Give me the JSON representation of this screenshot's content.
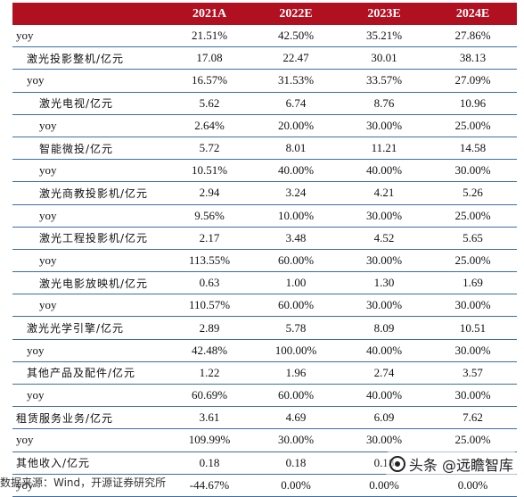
{
  "header": [
    "",
    "2021A",
    "2022E",
    "2023E",
    "2024E"
  ],
  "rows": [
    {
      "label": "yoy",
      "level": 0,
      "zh": false,
      "v": [
        "21.51%",
        "42.50%",
        "35.21%",
        "27.86%"
      ]
    },
    {
      "label": "激光投影整机/亿元",
      "level": 1,
      "zh": true,
      "v": [
        "17.08",
        "22.47",
        "30.01",
        "38.13"
      ]
    },
    {
      "label": "yoy",
      "level": 1,
      "zh": false,
      "v": [
        "16.57%",
        "31.53%",
        "33.57%",
        "27.09%"
      ]
    },
    {
      "label": "激光电视/亿元",
      "level": 2,
      "zh": true,
      "v": [
        "5.62",
        "6.74",
        "8.76",
        "10.96"
      ]
    },
    {
      "label": "yoy",
      "level": 2,
      "zh": false,
      "v": [
        "2.64%",
        "20.00%",
        "30.00%",
        "25.00%"
      ]
    },
    {
      "label": "智能微投/亿元",
      "level": 2,
      "zh": true,
      "v": [
        "5.72",
        "8.01",
        "11.21",
        "14.58"
      ]
    },
    {
      "label": "yoy",
      "level": 2,
      "zh": false,
      "v": [
        "10.51%",
        "40.00%",
        "40.00%",
        "30.00%"
      ]
    },
    {
      "label": "激光商教投影机/亿元",
      "level": 2,
      "zh": true,
      "v": [
        "2.94",
        "3.24",
        "4.21",
        "5.26"
      ]
    },
    {
      "label": "yoy",
      "level": 2,
      "zh": false,
      "v": [
        "9.56%",
        "10.00%",
        "30.00%",
        "25.00%"
      ]
    },
    {
      "label": "激光工程投影机/亿元",
      "level": 2,
      "zh": true,
      "v": [
        "2.17",
        "3.48",
        "4.52",
        "5.65"
      ]
    },
    {
      "label": "yoy",
      "level": 2,
      "zh": false,
      "v": [
        "113.55%",
        "60.00%",
        "30.00%",
        "25.00%"
      ]
    },
    {
      "label": "激光电影放映机/亿元",
      "level": 2,
      "zh": true,
      "v": [
        "0.63",
        "1.00",
        "1.30",
        "1.69"
      ]
    },
    {
      "label": "yoy",
      "level": 2,
      "zh": false,
      "v": [
        "110.57%",
        "60.00%",
        "30.00%",
        "30.00%"
      ]
    },
    {
      "label": "激光光学引擎/亿元",
      "level": 1,
      "zh": true,
      "v": [
        "2.89",
        "5.78",
        "8.09",
        "10.51"
      ]
    },
    {
      "label": "yoy",
      "level": 1,
      "zh": false,
      "v": [
        "42.48%",
        "100.00%",
        "40.00%",
        "30.00%"
      ]
    },
    {
      "label": "其他产品及配件/亿元",
      "level": 1,
      "zh": true,
      "v": [
        "1.22",
        "1.96",
        "2.74",
        "3.57"
      ]
    },
    {
      "label": "yoy",
      "level": 1,
      "zh": false,
      "v": [
        "60.69%",
        "60.00%",
        "40.00%",
        "30.00%"
      ]
    },
    {
      "label": "租赁服务业务/亿元",
      "level": 0,
      "zh": true,
      "v": [
        "3.61",
        "4.69",
        "6.09",
        "7.62"
      ]
    },
    {
      "label": "yoy",
      "level": 0,
      "zh": false,
      "v": [
        "109.99%",
        "30.00%",
        "30.00%",
        "25.00%"
      ]
    },
    {
      "label": "其他收入/亿元",
      "level": 0,
      "zh": true,
      "v": [
        "0.18",
        "0.18",
        "0.18",
        "0.18"
      ]
    },
    {
      "label": "yoy",
      "level": 0,
      "zh": false,
      "v": [
        "-44.67%",
        "0.00%",
        "0.00%",
        "0.00%"
      ]
    }
  ],
  "footer": "数据来源：Wind，开源证券研究所",
  "watermark": "头条 @远瞻智库",
  "colors": {
    "header_bg": "#b01020",
    "row_line": "#3b6ea8"
  }
}
